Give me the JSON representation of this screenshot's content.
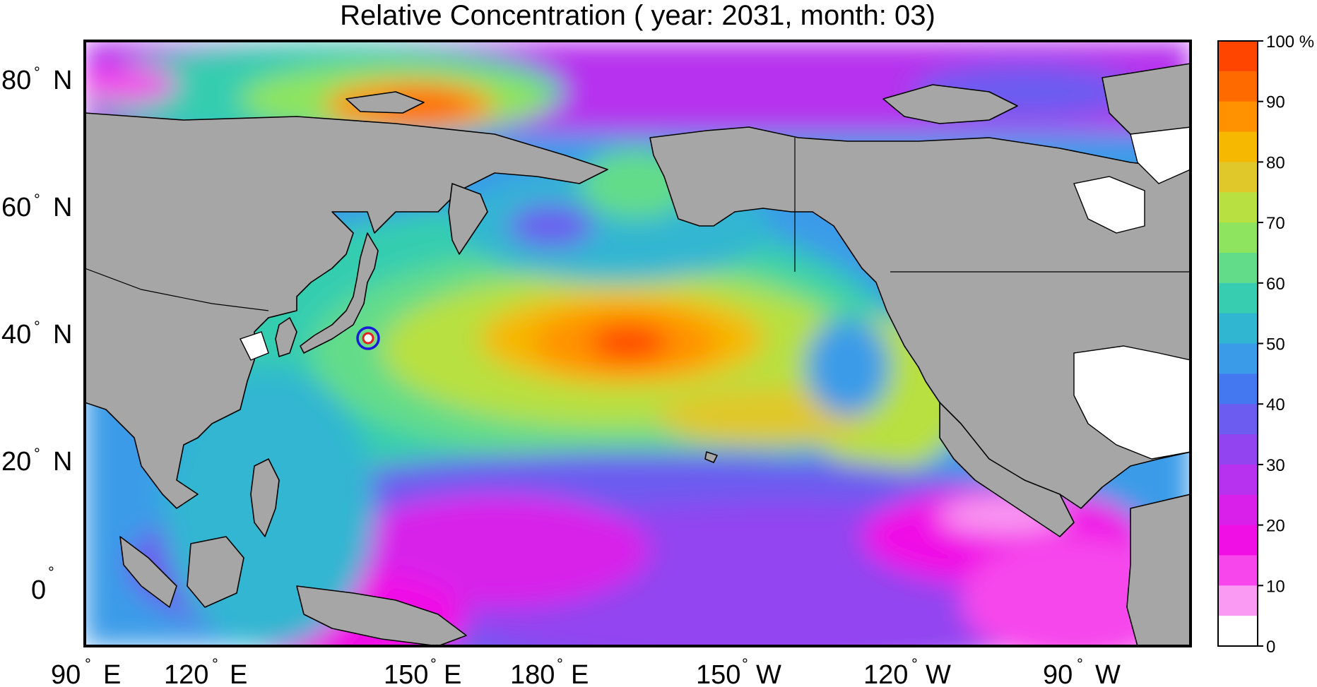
{
  "title": "Relative Concentration ( year: 2031, month: 03)",
  "map": {
    "lon_labels": [
      "90",
      "120",
      "150",
      "180",
      "150",
      "120",
      "90"
    ],
    "lon_hemis": [
      "E",
      "E",
      "E",
      "E",
      "W",
      "W",
      "W"
    ],
    "lat_labels": [
      "80",
      "60",
      "40",
      "20",
      "0"
    ],
    "lat_hemis": [
      "N",
      "N",
      "N",
      "N",
      ""
    ],
    "degree_symbol": "°",
    "land_color": "#a6a6a6",
    "coast_color": "#000000",
    "marker": {
      "lon_label": "141° E",
      "lat_label": "37° N",
      "ring_color": "#1a1adb",
      "inner_color": "#e82020"
    }
  },
  "colorbar": {
    "labels": [
      "100 %",
      "90",
      "80",
      "70",
      "60",
      "50",
      "40",
      "30",
      "20",
      "10",
      "0"
    ],
    "bands": [
      "#ff4500",
      "#ff6a00",
      "#ff9200",
      "#f6b800",
      "#e0c82a",
      "#b8e040",
      "#8ee45e",
      "#63dc8a",
      "#36cdb0",
      "#31b6d2",
      "#3a9be8",
      "#4478f0",
      "#6c5cf0",
      "#9244f0",
      "#b632ee",
      "#d820ea",
      "#f010e6",
      "#f646ec",
      "#fa9af2",
      "#ffffff"
    ]
  }
}
